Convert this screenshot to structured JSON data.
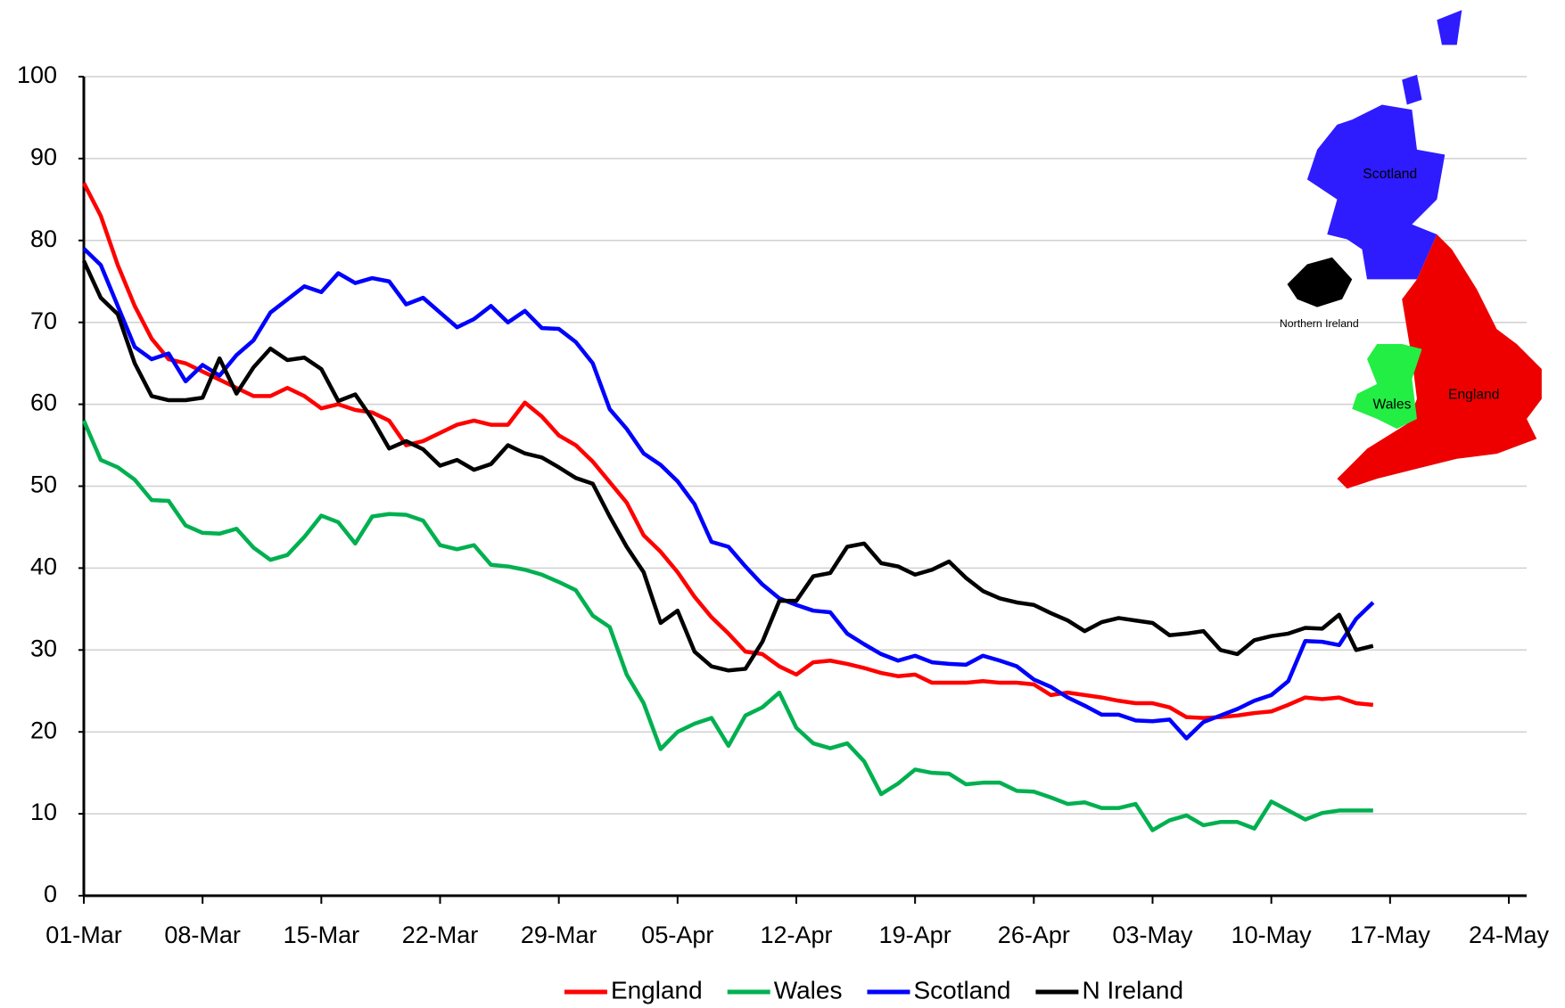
{
  "chart_data": {
    "type": "line",
    "x": [
      "01-Mar",
      "02-Mar",
      "03-Mar",
      "04-Mar",
      "05-Mar",
      "06-Mar",
      "07-Mar",
      "08-Mar",
      "09-Mar",
      "10-Mar",
      "11-Mar",
      "12-Mar",
      "13-Mar",
      "14-Mar",
      "15-Mar",
      "16-Mar",
      "17-Mar",
      "18-Mar",
      "19-Mar",
      "20-Mar",
      "21-Mar",
      "22-Mar",
      "23-Mar",
      "24-Mar",
      "25-Mar",
      "26-Mar",
      "27-Mar",
      "28-Mar",
      "29-Mar",
      "30-Mar",
      "31-Mar",
      "01-Apr",
      "02-Apr",
      "03-Apr",
      "04-Apr",
      "05-Apr",
      "06-Apr",
      "07-Apr",
      "08-Apr",
      "09-Apr",
      "10-Apr",
      "11-Apr",
      "12-Apr",
      "13-Apr",
      "14-Apr",
      "15-Apr",
      "16-Apr",
      "17-Apr",
      "18-Apr",
      "19-Apr",
      "20-Apr",
      "21-Apr",
      "22-Apr",
      "23-Apr",
      "24-Apr",
      "25-Apr",
      "26-Apr",
      "27-Apr",
      "28-Apr",
      "29-Apr",
      "30-Apr",
      "01-May",
      "02-May",
      "03-May",
      "04-May",
      "05-May",
      "06-May",
      "07-May",
      "08-May",
      "09-May",
      "10-May",
      "11-May",
      "12-May",
      "13-May",
      "14-May",
      "15-May",
      "16-May"
    ],
    "series": [
      {
        "name": "England",
        "color": "#ff0000",
        "values": [
          87,
          83,
          77,
          72,
          68,
          65.5,
          65,
          64,
          63,
          62,
          61,
          61,
          62,
          61,
          59.5,
          60,
          59.3,
          59,
          58,
          55,
          55.5,
          56.5,
          57.5,
          58,
          57.5,
          57.5,
          60.2,
          58.5,
          56.2,
          55,
          53,
          50.5,
          48,
          44,
          42,
          39.5,
          36.5,
          34,
          32,
          29.8,
          29.5,
          28,
          27,
          28.5,
          28.7,
          28.3,
          27.8,
          27.2,
          26.8,
          27,
          26,
          26,
          26,
          26.2,
          26,
          26,
          25.8,
          24.5,
          24.8,
          24.5,
          24.2,
          23.8,
          23.5,
          23.5,
          23,
          21.8,
          21.7,
          21.8,
          22,
          22.3,
          22.5,
          23.3,
          24.2,
          24,
          24.2,
          23.5,
          23.3
        ]
      },
      {
        "name": "Wales",
        "color": "#00b050",
        "values": [
          58,
          53.2,
          52.3,
          50.8,
          48.3,
          48.2,
          45.2,
          44.3,
          44.2,
          44.8,
          42.5,
          41,
          41.6,
          43.8,
          46.4,
          45.6,
          43,
          46.3,
          46.6,
          46.5,
          45.8,
          42.8,
          42.3,
          42.8,
          40.4,
          40.2,
          39.8,
          39.2,
          38.3,
          37.3,
          34.2,
          32.8,
          27,
          23.5,
          17.9,
          20,
          21,
          21.7,
          18.3,
          22,
          23,
          24.8,
          20.5,
          18.6,
          18,
          18.6,
          16.4,
          12.4,
          13.7,
          15.4,
          15,
          14.9,
          13.6,
          13.8,
          13.8,
          12.8,
          12.7,
          12,
          11.2,
          11.4,
          10.7,
          10.7,
          11.2,
          8,
          9.2,
          9.8,
          8.6,
          9,
          9,
          8.2,
          11.5,
          10.4,
          9.3,
          10.1,
          10.4,
          10.4,
          10.4
        ]
      },
      {
        "name": "Scotland",
        "color": "#0000ff",
        "values": [
          79,
          77,
          72,
          67,
          65.5,
          66.2,
          62.8,
          64.8,
          63.5,
          66,
          67.8,
          71.2,
          72.8,
          74.4,
          73.7,
          76,
          74.8,
          75.4,
          75,
          72.2,
          73,
          71.2,
          69.4,
          70.4,
          72,
          70,
          71.4,
          69.3,
          69.2,
          67.6,
          65,
          59.4,
          57,
          54,
          52.6,
          50.6,
          47.8,
          43.2,
          42.6,
          40.2,
          38,
          36.3,
          35.5,
          34.8,
          34.6,
          32,
          30.7,
          29.5,
          28.7,
          29.3,
          28.5,
          28.3,
          28.2,
          29.3,
          28.7,
          28,
          26.4,
          25.5,
          24.2,
          23.2,
          22.1,
          22.1,
          21.4,
          21.3,
          21.5,
          19.2,
          21.2,
          22,
          22.8,
          23.8,
          24.5,
          26.2,
          31.1,
          31,
          30.6,
          33.8,
          35.8
        ]
      },
      {
        "name": "N Ireland",
        "color": "#000000",
        "values": [
          77.5,
          73,
          71,
          65,
          61,
          60.5,
          60.5,
          60.8,
          65.6,
          61.3,
          64.5,
          66.8,
          65.4,
          65.7,
          64.3,
          60.4,
          61.2,
          58.2,
          54.6,
          55.5,
          54.5,
          52.5,
          53.2,
          52,
          52.7,
          55,
          54,
          53.5,
          52.3,
          51,
          50.3,
          46.3,
          42.6,
          39.5,
          33.3,
          34.8,
          29.8,
          28,
          27.5,
          27.7,
          31,
          36,
          36,
          39,
          39.4,
          42.6,
          43,
          40.6,
          40.2,
          39.2,
          39.8,
          40.8,
          38.8,
          37.2,
          36.3,
          35.8,
          35.5,
          34.5,
          33.6,
          32.3,
          33.4,
          33.9,
          33.6,
          33.3,
          31.8,
          32,
          32.3,
          30,
          29.5,
          31.2,
          31.7,
          32,
          32.7,
          32.6,
          34.3,
          30,
          30.5
        ]
      }
    ],
    "xlim": [
      "01-Mar",
      "24-May"
    ],
    "xticks": [
      "01-Mar",
      "08-Mar",
      "15-Mar",
      "22-Mar",
      "29-Mar",
      "05-Apr",
      "12-Apr",
      "19-Apr",
      "26-Apr",
      "03-May",
      "10-May",
      "17-May",
      "24-May"
    ],
    "ylim": [
      0,
      100
    ],
    "yticks": [
      0,
      10,
      20,
      30,
      40,
      50,
      60,
      70,
      80,
      90,
      100
    ],
    "grid": true,
    "legend": "bottom",
    "map_labels": [
      "Scotland",
      "Northern Ireland",
      "Wales",
      "England"
    ]
  }
}
